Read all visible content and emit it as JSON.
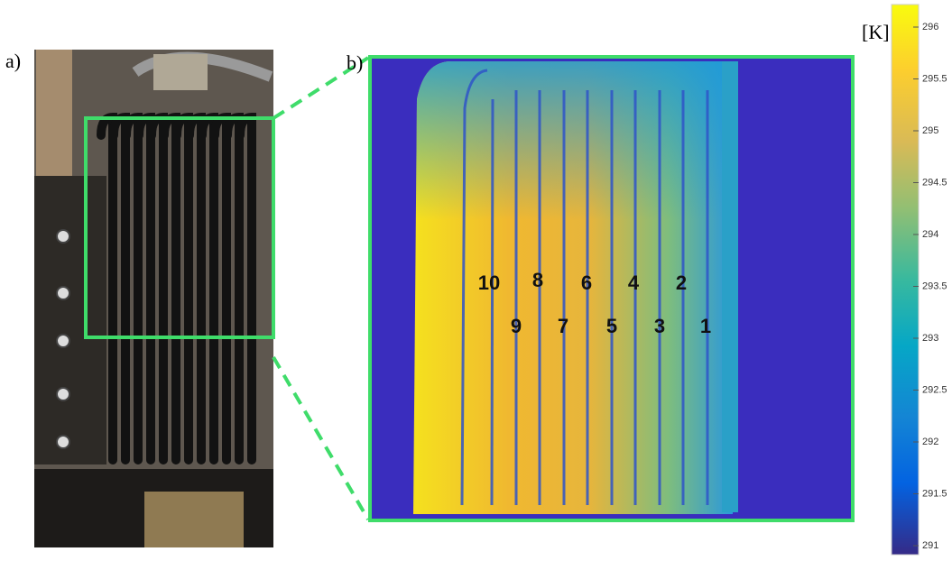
{
  "panels": {
    "a": "a)",
    "b": "b)"
  },
  "tube_labels": [
    "10",
    "8",
    "6",
    "4",
    "2",
    "9",
    "7",
    "5",
    "3",
    "1"
  ],
  "colorbar": {
    "unit": "[K]",
    "ticks": [
      291,
      291.5,
      292,
      292.5,
      293,
      293.5,
      294,
      294.5,
      295,
      295.5,
      296
    ]
  }
}
